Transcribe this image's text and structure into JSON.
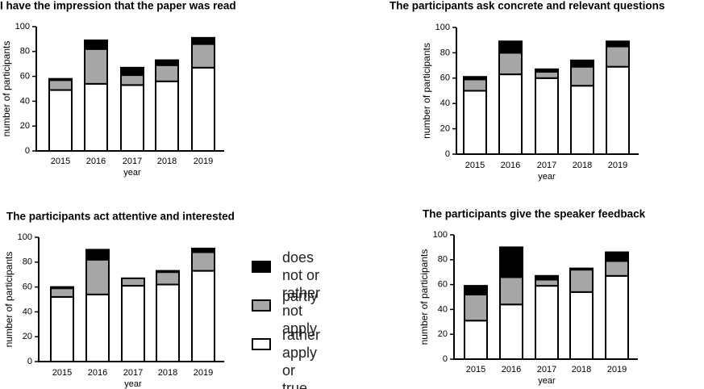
{
  "chart_data": [
    {
      "type": "bar",
      "stacked": true,
      "title": "I have the impression that the paper was read",
      "xlabel": "year",
      "ylabel": "number of participants",
      "categories": [
        "2015",
        "2016",
        "2017",
        "2018",
        "2019"
      ],
      "ylim": [
        0,
        100
      ],
      "yticks": [
        0,
        20,
        40,
        60,
        80,
        100
      ],
      "series": [
        {
          "color": "#ffffff",
          "values": [
            49,
            54,
            53,
            56,
            67
          ]
        },
        {
          "color": "#a6a6a6",
          "values": [
            8,
            28,
            8,
            13,
            19
          ]
        },
        {
          "color": "#000000",
          "values": [
            1,
            7,
            6,
            4,
            5
          ]
        }
      ]
    },
    {
      "type": "bar",
      "stacked": true,
      "title": "The participants ask concrete and relevant questions",
      "xlabel": "year",
      "ylabel": "number of participants",
      "categories": [
        "2015",
        "2016",
        "2017",
        "2018",
        "2019"
      ],
      "ylim": [
        0,
        100
      ],
      "yticks": [
        0,
        20,
        40,
        60,
        80,
        100
      ],
      "series": [
        {
          "color": "#ffffff",
          "values": [
            50,
            63,
            60,
            54,
            69
          ]
        },
        {
          "color": "#a6a6a6",
          "values": [
            9,
            17,
            5,
            15,
            16
          ]
        },
        {
          "color": "#000000",
          "values": [
            2,
            9,
            2,
            5,
            4
          ]
        }
      ]
    },
    {
      "type": "bar",
      "stacked": true,
      "title": "The participants act attentive and interested",
      "xlabel": "year",
      "ylabel": "number of participants",
      "categories": [
        "2015",
        "2016",
        "2017",
        "2018",
        "2019"
      ],
      "ylim": [
        0,
        100
      ],
      "yticks": [
        0,
        20,
        40,
        60,
        80,
        100
      ],
      "series": [
        {
          "name": "rather apply\nor true",
          "color": "#ffffff",
          "values": [
            52,
            54,
            61,
            62,
            73
          ]
        },
        {
          "name": "partly",
          "color": "#a6a6a6",
          "values": [
            7,
            28,
            6,
            10,
            15
          ]
        },
        {
          "name": "does not or\nrather not apply",
          "color": "#000000",
          "values": [
            1,
            8,
            0,
            1,
            3
          ]
        }
      ]
    },
    {
      "type": "bar",
      "stacked": true,
      "title": "The participants give the speaker feedback",
      "xlabel": "year",
      "ylabel": "number of participants",
      "categories": [
        "2015",
        "2016",
        "2017",
        "2018",
        "2019"
      ],
      "ylim": [
        0,
        100
      ],
      "yticks": [
        0,
        20,
        40,
        60,
        80,
        100
      ],
      "series": [
        {
          "color": "#ffffff",
          "values": [
            31,
            44,
            59,
            54,
            67
          ]
        },
        {
          "color": "#a6a6a6",
          "values": [
            21,
            22,
            5,
            18,
            12
          ]
        },
        {
          "color": "#000000",
          "values": [
            7,
            24,
            3,
            1,
            7
          ]
        }
      ]
    }
  ]
}
